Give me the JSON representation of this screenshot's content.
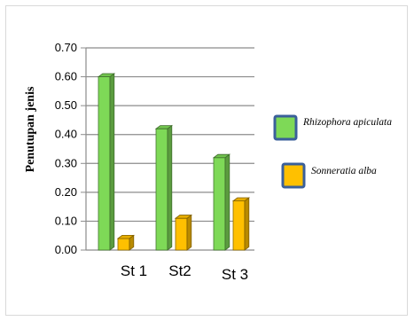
{
  "chart_data": {
    "type": "bar",
    "ylabel": "Penutupan jenis",
    "xlabel": "",
    "title": "",
    "ylim": [
      0,
      0.7
    ],
    "yticks": [
      "0.00",
      "0.10",
      "0.20",
      "0.30",
      "0.40",
      "0.50",
      "0.60",
      "0.70"
    ],
    "categories": [
      "St 1",
      "St2",
      "St 3"
    ],
    "series": [
      {
        "name": "Rhizophora apiculata",
        "values": [
          0.6,
          0.42,
          0.32
        ]
      },
      {
        "name": "Sonneratia alba",
        "values": [
          0.04,
          0.11,
          0.17
        ]
      }
    ],
    "legend_position": "right",
    "grid": true,
    "colors": {
      "Rhizophora apiculata": "#7ed957",
      "Sonneratia alba": "#ffc000",
      "grid": "#8c8c8c",
      "legend_border": "#3a5f9a"
    }
  }
}
